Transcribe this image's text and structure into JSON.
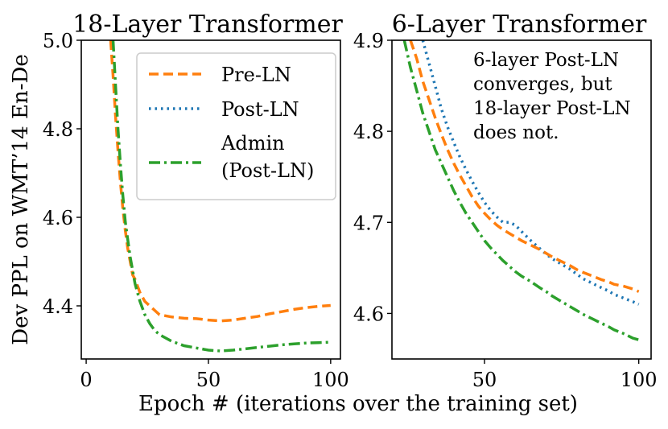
{
  "figure": {
    "xlabel": "Epoch # (iterations over the training set)",
    "ylabel": "Dev PPL on WMT’14 En-De"
  },
  "colors": {
    "Pre-LN": "#ff7f0e",
    "Post-LN": "#1f77b4",
    "Admin (Post-LN)": "#2ca02c"
  },
  "chart_data": [
    {
      "type": "line",
      "title": "18-Layer Transformer",
      "xlim": [
        -2,
        104
      ],
      "ylim": [
        4.28,
        5.0
      ],
      "xticks": [
        0,
        50,
        100
      ],
      "yticks": [
        4.4,
        4.6,
        4.8,
        5.0
      ],
      "ytick_labels": [
        "4.4",
        "4.6",
        "4.8",
        "5.0"
      ],
      "legend": {
        "placement": "top-right",
        "entries": [
          {
            "series": "Pre-LN",
            "lines": [
              "Pre-LN"
            ]
          },
          {
            "series": "Post-LN",
            "lines": [
              "Post-LN"
            ]
          },
          {
            "series": "Admin (Post-LN)",
            "lines": [
              "Admin",
              "(Post-LN)"
            ]
          }
        ]
      },
      "series": [
        {
          "name": "Pre-LN",
          "style": "dashed",
          "points": [
            [
              10,
              5.0
            ],
            [
              11,
              4.92
            ],
            [
              12,
              4.83
            ],
            [
              13,
              4.75
            ],
            [
              14,
              4.68
            ],
            [
              15,
              4.62
            ],
            [
              16,
              4.57
            ],
            [
              17,
              4.53
            ],
            [
              18,
              4.5
            ],
            [
              19,
              4.47
            ],
            [
              20,
              4.46
            ],
            [
              22,
              4.43
            ],
            [
              24,
              4.41
            ],
            [
              26,
              4.4
            ],
            [
              28,
              4.39
            ],
            [
              30,
              4.38
            ],
            [
              35,
              4.375
            ],
            [
              40,
              4.372
            ],
            [
              45,
              4.371
            ],
            [
              50,
              4.368
            ],
            [
              55,
              4.366
            ],
            [
              60,
              4.368
            ],
            [
              65,
              4.372
            ],
            [
              70,
              4.376
            ],
            [
              75,
              4.382
            ],
            [
              80,
              4.387
            ],
            [
              85,
              4.392
            ],
            [
              90,
              4.396
            ],
            [
              95,
              4.399
            ],
            [
              100,
              4.401
            ]
          ]
        },
        {
          "name": "Admin (Post-LN)",
          "style": "dashdot",
          "points": [
            [
              11,
              5.0
            ],
            [
              12,
              4.9
            ],
            [
              13,
              4.8
            ],
            [
              14,
              4.72
            ],
            [
              15,
              4.65
            ],
            [
              16,
              4.59
            ],
            [
              17,
              4.55
            ],
            [
              18,
              4.51
            ],
            [
              19,
              4.48
            ],
            [
              20,
              4.45
            ],
            [
              22,
              4.41
            ],
            [
              24,
              4.38
            ],
            [
              26,
              4.36
            ],
            [
              28,
              4.345
            ],
            [
              30,
              4.335
            ],
            [
              35,
              4.32
            ],
            [
              40,
              4.31
            ],
            [
              45,
              4.305
            ],
            [
              50,
              4.3
            ],
            [
              55,
              4.298
            ],
            [
              60,
              4.3
            ],
            [
              65,
              4.303
            ],
            [
              70,
              4.306
            ],
            [
              75,
              4.309
            ],
            [
              80,
              4.312
            ],
            [
              85,
              4.314
            ],
            [
              90,
              4.316
            ],
            [
              95,
              4.317
            ],
            [
              100,
              4.318
            ]
          ]
        }
      ]
    },
    {
      "type": "line",
      "title": "6-Layer Transformer",
      "xlim": [
        20,
        104
      ],
      "ylim": [
        4.55,
        4.9
      ],
      "xticks": [
        50,
        100
      ],
      "yticks": [
        4.6,
        4.7,
        4.8,
        4.9
      ],
      "ytick_labels": [
        "4.6",
        "4.7",
        "4.8",
        "4.9"
      ],
      "annotation": [
        "6-layer Post-LN",
        "converges, but",
        "18-layer Post-LN",
        "does not."
      ],
      "series": [
        {
          "name": "Post-LN",
          "style": "dotted",
          "points": [
            [
              30,
              4.9
            ],
            [
              32,
              4.875
            ],
            [
              34,
              4.85
            ],
            [
              36,
              4.825
            ],
            [
              38,
              4.805
            ],
            [
              40,
              4.788
            ],
            [
              42,
              4.772
            ],
            [
              44,
              4.758
            ],
            [
              46,
              4.745
            ],
            [
              48,
              4.733
            ],
            [
              50,
              4.722
            ],
            [
              52,
              4.713
            ],
            [
              54,
              4.706
            ],
            [
              56,
              4.7
            ],
            [
              58,
              4.7
            ],
            [
              60,
              4.697
            ],
            [
              62,
              4.69
            ],
            [
              65,
              4.68
            ],
            [
              68,
              4.671
            ],
            [
              70,
              4.665
            ],
            [
              72,
              4.66
            ],
            [
              75,
              4.654
            ],
            [
              78,
              4.648
            ],
            [
              80,
              4.643
            ],
            [
              82,
              4.638
            ],
            [
              85,
              4.633
            ],
            [
              88,
              4.628
            ],
            [
              90,
              4.625
            ],
            [
              92,
              4.621
            ],
            [
              95,
              4.617
            ],
            [
              98,
              4.613
            ],
            [
              100,
              4.61
            ]
          ]
        },
        {
          "name": "Pre-LN",
          "style": "dashed",
          "points": [
            [
              26,
              4.9
            ],
            [
              28,
              4.88
            ],
            [
              30,
              4.855
            ],
            [
              32,
              4.835
            ],
            [
              34,
              4.815
            ],
            [
              36,
              4.797
            ],
            [
              38,
              4.78
            ],
            [
              40,
              4.765
            ],
            [
              42,
              4.752
            ],
            [
              44,
              4.74
            ],
            [
              46,
              4.728
            ],
            [
              48,
              4.718
            ],
            [
              50,
              4.71
            ],
            [
              52,
              4.703
            ],
            [
              54,
              4.697
            ],
            [
              56,
              4.692
            ],
            [
              58,
              4.688
            ],
            [
              60,
              4.684
            ],
            [
              62,
              4.68
            ],
            [
              65,
              4.675
            ],
            [
              68,
              4.67
            ],
            [
              70,
              4.666
            ],
            [
              72,
              4.662
            ],
            [
              75,
              4.657
            ],
            [
              78,
              4.652
            ],
            [
              80,
              4.648
            ],
            [
              82,
              4.645
            ],
            [
              85,
              4.641
            ],
            [
              88,
              4.637
            ],
            [
              90,
              4.635
            ],
            [
              92,
              4.632
            ],
            [
              95,
              4.63
            ],
            [
              98,
              4.627
            ],
            [
              100,
              4.624
            ]
          ]
        },
        {
          "name": "Admin (Post-LN)",
          "style": "dashdot",
          "points": [
            [
              24,
              4.9
            ],
            [
              26,
              4.87
            ],
            [
              28,
              4.845
            ],
            [
              30,
              4.82
            ],
            [
              32,
              4.8
            ],
            [
              34,
              4.78
            ],
            [
              36,
              4.765
            ],
            [
              38,
              4.75
            ],
            [
              40,
              4.735
            ],
            [
              42,
              4.722
            ],
            [
              44,
              4.71
            ],
            [
              46,
              4.7
            ],
            [
              48,
              4.69
            ],
            [
              50,
              4.68
            ],
            [
              52,
              4.672
            ],
            [
              54,
              4.665
            ],
            [
              56,
              4.658
            ],
            [
              58,
              4.652
            ],
            [
              60,
              4.646
            ],
            [
              62,
              4.641
            ],
            [
              65,
              4.635
            ],
            [
              68,
              4.628
            ],
            [
              70,
              4.624
            ],
            [
              72,
              4.619
            ],
            [
              75,
              4.613
            ],
            [
              78,
              4.607
            ],
            [
              80,
              4.603
            ],
            [
              82,
              4.599
            ],
            [
              85,
              4.594
            ],
            [
              88,
              4.589
            ],
            [
              90,
              4.586
            ],
            [
              92,
              4.582
            ],
            [
              95,
              4.578
            ],
            [
              98,
              4.573
            ],
            [
              100,
              4.571
            ]
          ]
        }
      ]
    }
  ]
}
